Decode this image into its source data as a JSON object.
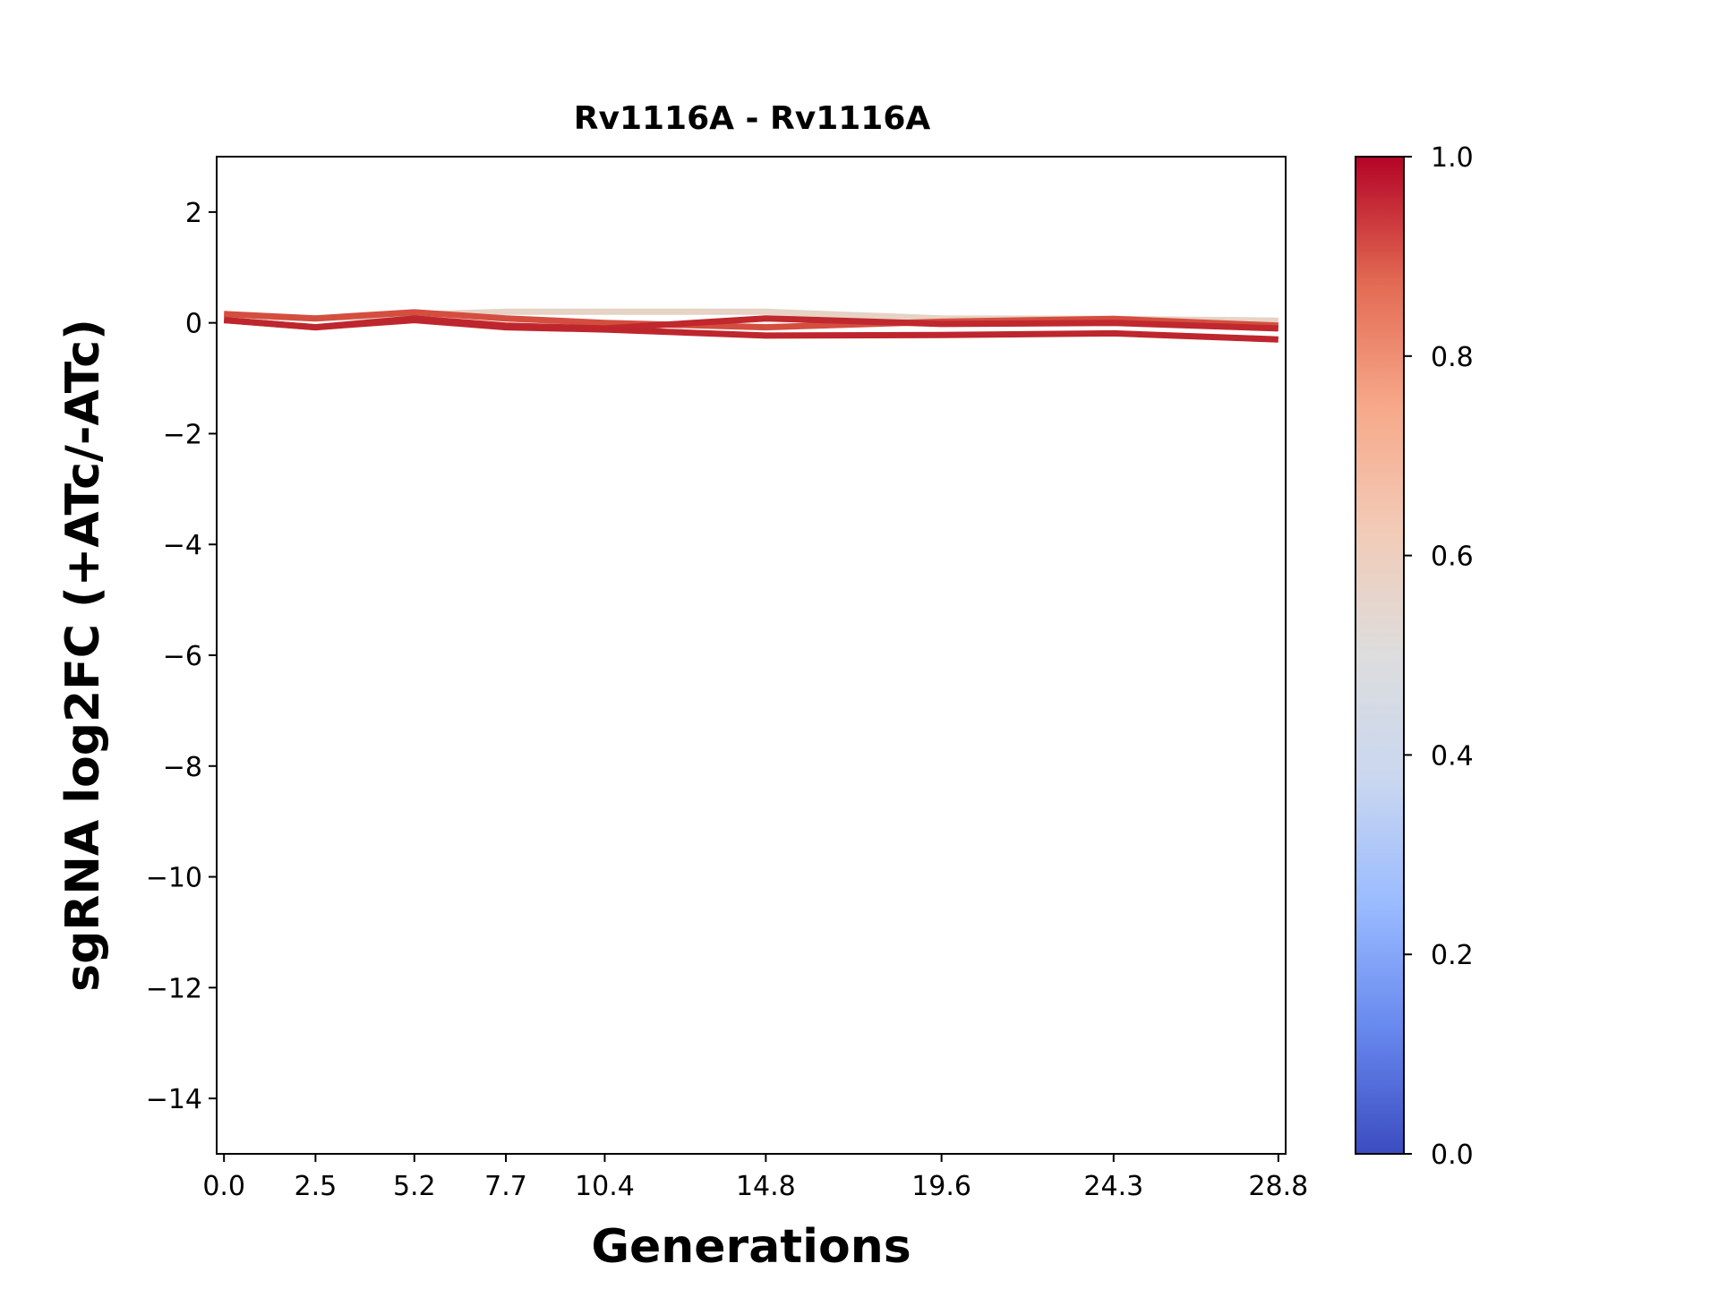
{
  "chart_data": {
    "type": "line",
    "title": "Rv1116A - Rv1116A",
    "xlabel": "Generations",
    "ylabel": "sgRNA log2FC (+ATc/-ATc)",
    "xlim": [
      -0.2,
      29.0
    ],
    "ylim": [
      -15,
      3
    ],
    "xticks": [
      0.0,
      2.5,
      5.2,
      7.7,
      10.4,
      14.8,
      19.6,
      24.3,
      28.8
    ],
    "xtick_labels": [
      "0.0",
      "2.5",
      "5.2",
      "7.7",
      "10.4",
      "14.8",
      "19.6",
      "24.3",
      "28.8"
    ],
    "yticks": [
      2,
      0,
      -2,
      -4,
      -6,
      -8,
      -10,
      -12,
      -14
    ],
    "ytick_labels": [
      "2",
      "0",
      "−2",
      "−4",
      "−6",
      "−8",
      "−10",
      "−12",
      "−14"
    ],
    "grid": false,
    "x": [
      0.0,
      2.5,
      5.2,
      7.7,
      10.4,
      14.8,
      19.6,
      24.3,
      28.8
    ],
    "series": [
      {
        "color_value": 0.58,
        "color": "#e6d3c6",
        "values": [
          0.13,
          0.08,
          0.15,
          0.2,
          0.2,
          0.2,
          0.08,
          0.07,
          0.04
        ]
      },
      {
        "color_value": 0.86,
        "color": "#d44e3f",
        "values": [
          0.16,
          0.08,
          0.19,
          0.08,
          0.0,
          -0.08,
          0.02,
          0.07,
          -0.05
        ]
      },
      {
        "color_value": 0.95,
        "color": "#c0282e",
        "values": [
          0.05,
          -0.08,
          0.08,
          -0.05,
          -0.1,
          0.08,
          -0.02,
          0.0,
          -0.1
        ]
      },
      {
        "color_value": 0.96,
        "color": "#be262d",
        "values": [
          0.05,
          -0.08,
          0.05,
          -0.08,
          -0.12,
          -0.23,
          -0.22,
          -0.19,
          -0.3
        ]
      }
    ],
    "colorbar": {
      "colormap": "coolwarm",
      "range": [
        0.0,
        1.0
      ],
      "ticks": [
        0.0,
        0.2,
        0.4,
        0.6,
        0.8,
        1.0
      ],
      "tick_labels": [
        "0.0",
        "0.2",
        "0.4",
        "0.6",
        "0.8",
        "1.0"
      ],
      "colors": [
        "#3b4cc0",
        "#6788ee",
        "#9abbff",
        "#c9d7f0",
        "#dddddd",
        "#f2cbb7",
        "#f7a889",
        "#e26952",
        "#b40426"
      ]
    }
  }
}
